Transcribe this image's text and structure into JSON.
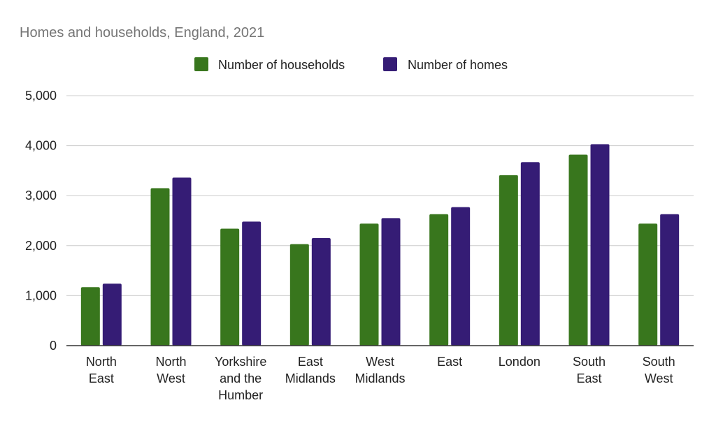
{
  "chart_data": {
    "type": "bar",
    "title": "Homes and households, England, 2021",
    "categories": [
      [
        "North",
        "East"
      ],
      [
        "North",
        "West"
      ],
      [
        "Yorkshire",
        "and the",
        "Humber"
      ],
      [
        "East",
        "Midlands"
      ],
      [
        "West",
        "Midlands"
      ],
      [
        "East"
      ],
      [
        "London"
      ],
      [
        "South",
        "East"
      ],
      [
        "South",
        "West"
      ]
    ],
    "series": [
      {
        "name": "Number of households",
        "color": "#38761d",
        "values": [
          1170,
          3150,
          2340,
          2030,
          2440,
          2630,
          3410,
          3820,
          2440
        ]
      },
      {
        "name": "Number of homes",
        "color": "#351c75",
        "values": [
          1240,
          3360,
          2480,
          2150,
          2550,
          2770,
          3670,
          4030,
          2630
        ]
      }
    ],
    "yticks": [
      "0",
      "1,000",
      "2,000",
      "3,000",
      "4,000",
      "5,000"
    ],
    "ylim": [
      0,
      5000
    ],
    "grid": true,
    "legend_position": "top"
  }
}
